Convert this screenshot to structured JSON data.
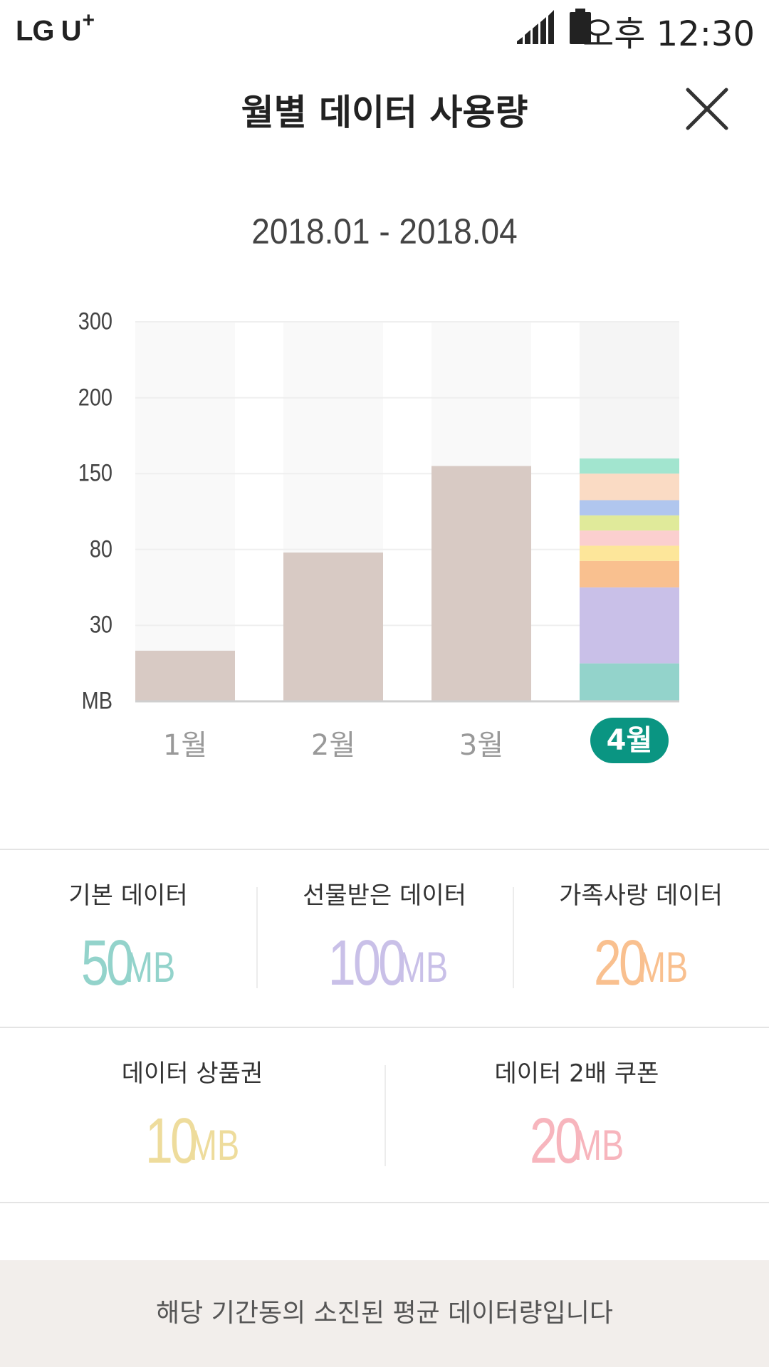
{
  "status_bar": {
    "carrier": "LG U",
    "carrier_plus": "+",
    "time": "오후 12:30"
  },
  "header": {
    "title": "월별 데이터 사용량",
    "close_icon": "close-icon"
  },
  "period": "2018.01 - 2018.04",
  "chart_data": {
    "type": "bar",
    "categories": [
      "1월",
      "2월",
      "3월",
      "4월"
    ],
    "selected_category": "4월",
    "y_ticks": [
      "MB",
      "30",
      "80",
      "150",
      "200",
      "300"
    ],
    "ylabel": "MB",
    "values": [
      20,
      78,
      155,
      165
    ],
    "stacked_last": {
      "segments": [
        {
          "color": "#93d3cb",
          "level": 0.1
        },
        {
          "color": "#c9c0e8",
          "level": 0.2
        },
        {
          "color": "#f9c08f",
          "level": 0.07
        },
        {
          "color": "#fde69a",
          "level": 0.04
        },
        {
          "color": "#fbcfcf",
          "level": 0.04
        },
        {
          "color": "#e0ea9a",
          "level": 0.04
        },
        {
          "color": "#b0c6ee",
          "level": 0.04
        },
        {
          "color": "#fadbc4",
          "level": 0.07
        },
        {
          "color": "#a2e5cf",
          "level": 0.04
        }
      ]
    },
    "colors": {
      "bar": "#d8cac4",
      "track": "#f9f9f9",
      "track_selected": "#f5f5f5",
      "selected_label_bg": "#0a9582"
    }
  },
  "stats_row1": [
    {
      "label": "기본 데이터",
      "value": "50",
      "unit": "MB",
      "color": "#93d3cb"
    },
    {
      "label": "선물받은 데이터",
      "value": "100",
      "unit": "MB",
      "color": "#c9c0e8"
    },
    {
      "label": "가족사랑 데이터",
      "value": "20",
      "unit": "MB",
      "color": "#f9c08f"
    }
  ],
  "stats_row2": [
    {
      "label": "데이터 상품권",
      "value": "10",
      "unit": "MB",
      "color": "#eedc9c"
    },
    {
      "label": "데이터 2배 쿠폰",
      "value": "20",
      "unit": "MB",
      "color": "#f7b5bd"
    }
  ],
  "footer": {
    "note": "해당 기간동의 소진된 평균 데이터량입니다"
  }
}
